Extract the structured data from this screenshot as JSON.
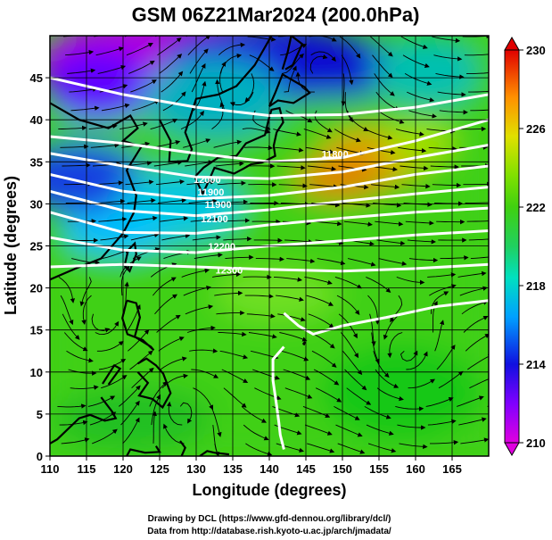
{
  "chart_data": {
    "type": "heatmap",
    "title": "GSM 06Z21Mar2024 (200.0hPa)",
    "xlabel": "Longitude (degrees)",
    "ylabel": "Latitude  (degrees)",
    "xlim": [
      110,
      170
    ],
    "ylim": [
      0,
      50
    ],
    "xticks": [
      110,
      115,
      120,
      125,
      130,
      135,
      140,
      145,
      150,
      155,
      160,
      165
    ],
    "yticks": [
      0,
      5,
      10,
      15,
      20,
      25,
      30,
      35,
      40,
      45
    ],
    "grid": true,
    "colorbar": {
      "range": [
        210,
        230
      ],
      "ticks": [
        210,
        214,
        218,
        222,
        226,
        230
      ],
      "colors": [
        "#e000e0",
        "#8000ff",
        "#1010e0",
        "#00c0ff",
        "#00e0a0",
        "#30d020",
        "#60e000",
        "#e0e000",
        "#ff8000",
        "#e00000"
      ]
    },
    "contour_labels": [
      {
        "text": "12000",
        "lon": 131.5,
        "lat": 32.5
      },
      {
        "text": "11900",
        "lon": 132.0,
        "lat": 31.0
      },
      {
        "text": "11900",
        "lon": 133.0,
        "lat": 29.5
      },
      {
        "text": "12100",
        "lon": 132.5,
        "lat": 27.8
      },
      {
        "text": "12200",
        "lon": 133.5,
        "lat": 24.5
      },
      {
        "text": "12300",
        "lon": 134.5,
        "lat": 21.7
      },
      {
        "text": "11800",
        "lon": 149.0,
        "lat": 35.5
      }
    ],
    "field_features": [
      {
        "kind": "low",
        "lon": 135.5,
        "lat": 45.5
      },
      {
        "kind": "low",
        "lon": 147.0,
        "lat": 46.5
      },
      {
        "kind": "high",
        "lon": 158.5,
        "lat": 12.0
      },
      {
        "kind": "high",
        "lon": 117.0,
        "lat": 16.0
      }
    ]
  },
  "credits": {
    "line1": "Drawing by DCL (https://www.gfd-dennou.org/library/dcl/)",
    "line2": "Data from http://database.rish.kyoto-u.ac.jp/arch/jmadata/"
  }
}
